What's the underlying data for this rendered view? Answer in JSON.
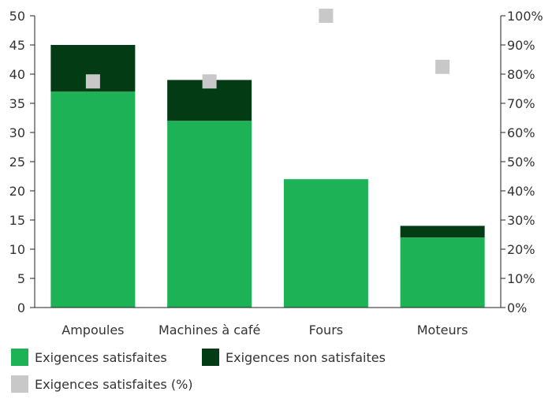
{
  "colors": {
    "satisfied": "#1db255",
    "unsatisfied": "#033c14",
    "percent": "#c8c8c8",
    "axis": "#222222",
    "text": "#333333"
  },
  "chart_data": {
    "type": "bar",
    "stacked": true,
    "categories": [
      "Ampoules",
      "Machines à café",
      "Fours",
      "Moteurs"
    ],
    "series": [
      {
        "name": "Exigences satisfaites",
        "values": [
          37,
          32,
          22,
          12
        ],
        "axis": "left"
      },
      {
        "name": "Exigences non satisfaites",
        "values": [
          8,
          7,
          0,
          2
        ],
        "axis": "left"
      },
      {
        "name": "Exigences satisfaites (%)",
        "type": "scatter",
        "values": [
          77.5,
          77.5,
          100,
          82.5
        ],
        "axis": "right"
      }
    ],
    "ylim": [
      0,
      50
    ],
    "yticks": [
      "0",
      "5",
      "10",
      "15",
      "20",
      "25",
      "30",
      "35",
      "40",
      "45",
      "50"
    ],
    "y2lim": [
      0,
      100
    ],
    "y2ticks": [
      "0%",
      "10%",
      "20%",
      "30%",
      "40%",
      "50%",
      "60%",
      "70%",
      "80%",
      "90%",
      "100%"
    ],
    "grid": false,
    "legend_position": "bottom-left"
  }
}
